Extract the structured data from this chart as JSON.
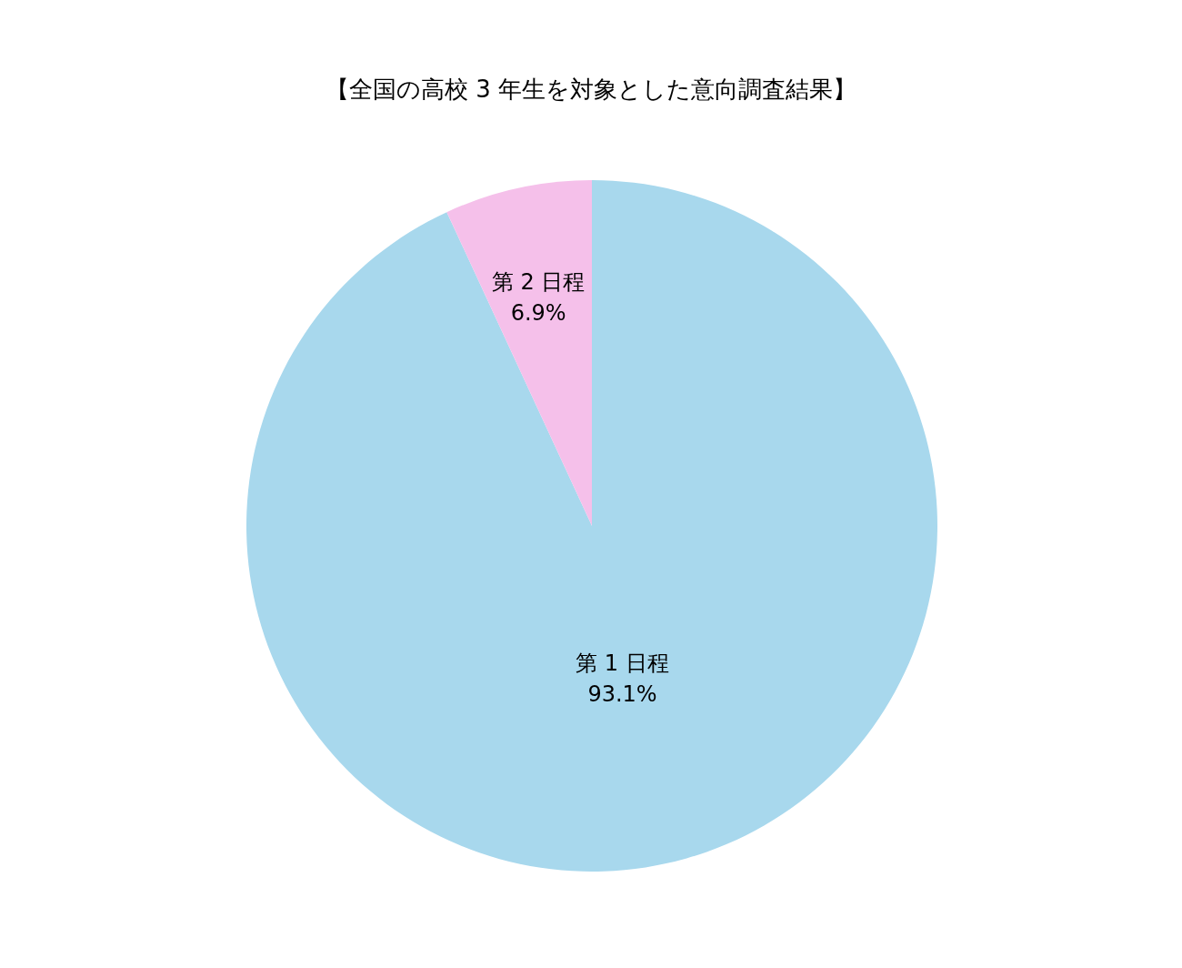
{
  "chart_data": {
    "type": "pie",
    "title": "【全国の高校 3 年生を対象とした意向調査結果】",
    "categories": [
      "第 1 日程",
      "第 2 日程"
    ],
    "values": [
      93.1,
      6.9
    ],
    "colors": [
      "#a8d8ed",
      "#f5c0ea"
    ],
    "value_labels": [
      "93.1%",
      "6.9%"
    ],
    "legend": false
  }
}
